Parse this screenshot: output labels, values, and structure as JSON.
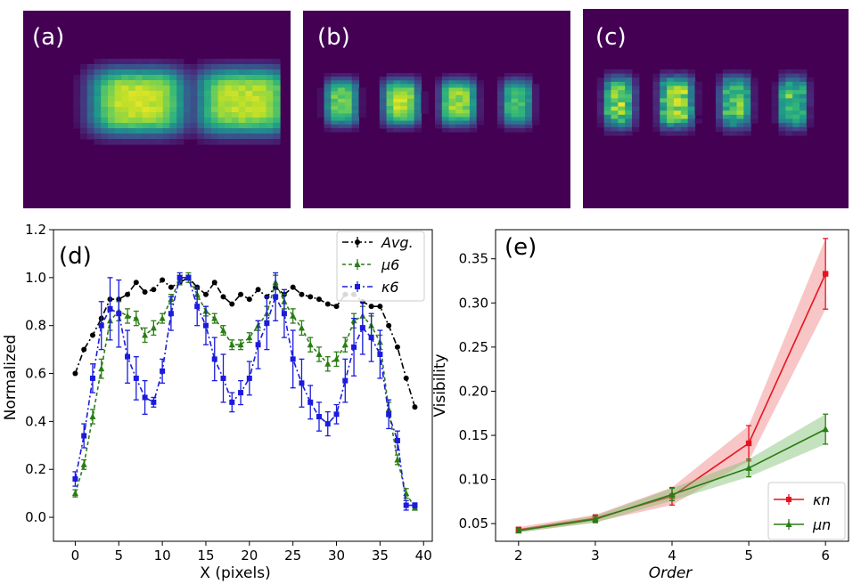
{
  "panels": [
    {
      "label": "(a)",
      "blobs": [
        [
          12,
          0.92,
          5.4
        ],
        [
          24,
          0.9,
          5.4
        ]
      ],
      "noise": 0.05
    },
    {
      "label": "(b)",
      "blobs": [
        [
          3.5,
          0.78,
          1.8
        ],
        [
          10.2,
          0.88,
          2.0
        ],
        [
          16.6,
          0.84,
          2.0
        ],
        [
          23.2,
          0.7,
          1.7
        ]
      ],
      "noise": 0.1
    },
    {
      "label": "(c)",
      "blobs": [
        [
          3.2,
          0.8,
          1.7
        ],
        [
          9.6,
          0.86,
          1.9
        ],
        [
          16.2,
          0.76,
          1.7
        ],
        [
          22.6,
          0.72,
          1.6
        ]
      ],
      "noise": 0.22
    }
  ],
  "chart_data": [
    {
      "panel_label": "(d)",
      "type": "line",
      "xlabel": "X (pixels)",
      "ylabel": "Normalized",
      "xlim": [
        -2.5,
        41
      ],
      "ylim": [
        -0.1,
        1.2
      ],
      "xticks": [
        0,
        5,
        10,
        15,
        20,
        25,
        30,
        35,
        40
      ],
      "yticks": [
        0.0,
        0.2,
        0.4,
        0.6,
        0.8,
        1.0,
        1.2
      ],
      "legend_position": "top-right",
      "series": [
        {
          "name": "Avg.",
          "color": "#000000",
          "dash": "7,3,2,3",
          "marker": "circle",
          "x": [
            0,
            1,
            2,
            3,
            4,
            5,
            6,
            7,
            8,
            9,
            10,
            11,
            12,
            13,
            14,
            15,
            16,
            17,
            18,
            19,
            20,
            21,
            22,
            23,
            24,
            25,
            26,
            27,
            28,
            29,
            30,
            31,
            32,
            33,
            34,
            35,
            36,
            37,
            38,
            39
          ],
          "y": [
            0.6,
            0.7,
            0.76,
            0.83,
            0.91,
            0.91,
            0.93,
            0.98,
            0.94,
            0.95,
            0.99,
            0.96,
            0.98,
            1.0,
            0.96,
            0.93,
            0.98,
            0.92,
            0.89,
            0.93,
            0.91,
            0.95,
            0.92,
            0.96,
            0.93,
            0.96,
            0.93,
            0.92,
            0.91,
            0.89,
            0.88,
            0.93,
            0.93,
            0.9,
            0.88,
            0.88,
            0.8,
            0.71,
            0.58,
            0.46
          ],
          "err": []
        },
        {
          "name": "μ6",
          "color": "#2a7d15",
          "dash": "4,3",
          "marker": "triangle",
          "x": [
            0,
            1,
            2,
            3,
            4,
            5,
            6,
            7,
            8,
            9,
            10,
            11,
            12,
            13,
            14,
            15,
            16,
            17,
            18,
            19,
            20,
            21,
            22,
            23,
            24,
            25,
            26,
            27,
            28,
            29,
            30,
            31,
            32,
            33,
            34,
            35,
            36,
            37,
            38,
            39
          ],
          "y": [
            0.1,
            0.22,
            0.42,
            0.62,
            0.82,
            0.86,
            0.84,
            0.83,
            0.76,
            0.79,
            0.83,
            0.91,
            0.99,
            1.0,
            0.93,
            0.86,
            0.83,
            0.78,
            0.72,
            0.72,
            0.75,
            0.8,
            0.85,
            0.98,
            0.9,
            0.84,
            0.79,
            0.72,
            0.68,
            0.64,
            0.66,
            0.72,
            0.82,
            0.84,
            0.8,
            0.73,
            0.45,
            0.24,
            0.1,
            0.04
          ],
          "err": [
            0.015,
            0.02,
            0.03,
            0.04,
            0.04,
            0.04,
            0.03,
            0.03,
            0.03,
            0.03,
            0.02,
            0.02,
            0.02,
            0.02,
            0.02,
            0.02,
            0.02,
            0.02,
            0.02,
            0.02,
            0.02,
            0.02,
            0.03,
            0.03,
            0.03,
            0.03,
            0.03,
            0.03,
            0.03,
            0.03,
            0.03,
            0.03,
            0.03,
            0.04,
            0.04,
            0.03,
            0.03,
            0.02,
            0.02,
            0.01
          ]
        },
        {
          "name": "κ6",
          "color": "#1b1bde",
          "dash": "6,3,2,3",
          "marker": "square",
          "x": [
            0,
            1,
            2,
            3,
            4,
            5,
            6,
            7,
            8,
            9,
            10,
            11,
            12,
            13,
            14,
            15,
            16,
            17,
            18,
            19,
            20,
            21,
            22,
            23,
            24,
            25,
            26,
            27,
            28,
            29,
            30,
            31,
            32,
            33,
            34,
            35,
            36,
            37,
            38,
            39
          ],
          "y": [
            0.16,
            0.34,
            0.58,
            0.8,
            0.87,
            0.85,
            0.67,
            0.58,
            0.5,
            0.48,
            0.61,
            0.85,
            1.0,
            1.0,
            0.88,
            0.8,
            0.66,
            0.58,
            0.48,
            0.52,
            0.58,
            0.72,
            0.81,
            0.92,
            0.85,
            0.66,
            0.56,
            0.48,
            0.42,
            0.39,
            0.43,
            0.57,
            0.71,
            0.79,
            0.75,
            0.68,
            0.43,
            0.32,
            0.05,
            0.05
          ],
          "err": [
            0.03,
            0.05,
            0.06,
            0.1,
            0.13,
            0.14,
            0.11,
            0.09,
            0.07,
            0.02,
            0.05,
            0.07,
            0.02,
            0.01,
            0.08,
            0.08,
            0.09,
            0.1,
            0.04,
            0.05,
            0.07,
            0.1,
            0.11,
            0.1,
            0.1,
            0.12,
            0.1,
            0.07,
            0.06,
            0.05,
            0.04,
            0.09,
            0.12,
            0.11,
            0.1,
            0.1,
            0.06,
            0.04,
            0.02,
            0.01
          ]
        }
      ]
    },
    {
      "panel_label": "(e)",
      "type": "line",
      "xlabel": "Order",
      "ylabel": "Visibility",
      "xlim": [
        1.7,
        6.3
      ],
      "ylim": [
        0.03,
        0.383
      ],
      "xticks": [
        2,
        3,
        4,
        5,
        6
      ],
      "yticks": [
        0.05,
        0.1,
        0.15,
        0.2,
        0.25,
        0.3,
        0.35
      ],
      "legend_position": "bottom-right",
      "series": [
        {
          "name": "κn",
          "color": "#e8121f",
          "fill": "#f08080",
          "marker": "square",
          "x": [
            2,
            3,
            4,
            5,
            6
          ],
          "y": [
            0.043,
            0.056,
            0.081,
            0.141,
            0.333
          ],
          "err": [
            0.003,
            0.004,
            0.01,
            0.02,
            0.04
          ]
        },
        {
          "name": "μn",
          "color": "#2a7d15",
          "fill": "#7fbf6f",
          "marker": "triangle",
          "x": [
            2,
            3,
            4,
            5,
            6
          ],
          "y": [
            0.042,
            0.055,
            0.083,
            0.113,
            0.157
          ],
          "err": [
            0.002,
            0.004,
            0.007,
            0.01,
            0.017
          ]
        }
      ]
    }
  ]
}
